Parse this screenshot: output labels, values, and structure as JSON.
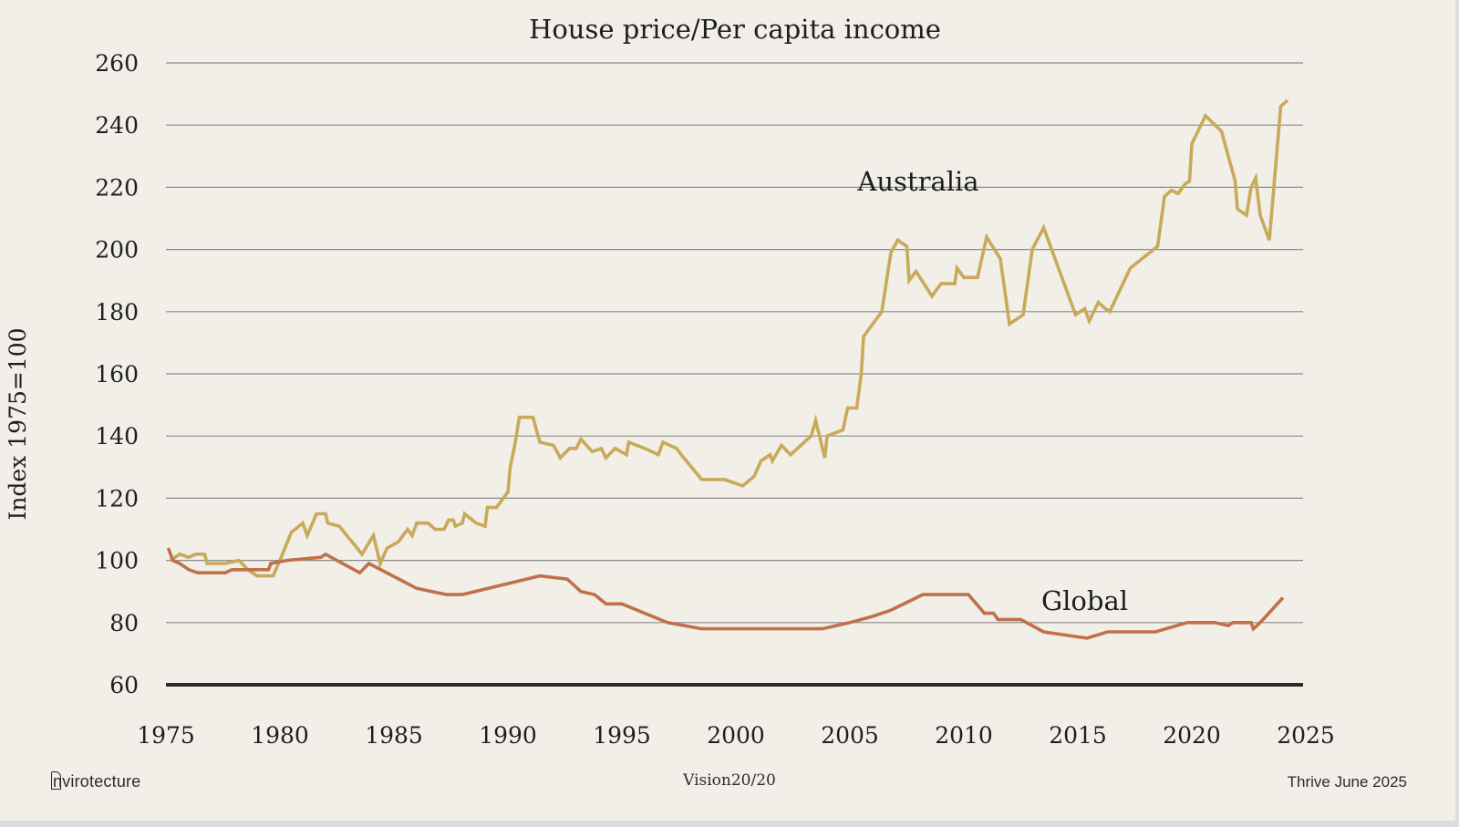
{
  "chart_data": {
    "type": "line",
    "title": "House price/Per capita income",
    "ylabel": "Index 1975=100",
    "xlabel": "",
    "xlim": [
      1975,
      2025
    ],
    "ylim": [
      60,
      260
    ],
    "x_ticks": [
      1975,
      1980,
      1985,
      1990,
      1995,
      2000,
      2005,
      2010,
      2015,
      2020,
      2025
    ],
    "y_ticks": [
      60,
      80,
      100,
      120,
      140,
      160,
      180,
      200,
      220,
      240,
      260
    ],
    "grid": true,
    "colors": {
      "Australia": "#c9a95a",
      "Global": "#c0714a",
      "grid": "#8a8a8a",
      "baseline": "#2b2a24"
    },
    "series": [
      {
        "name": "Australia",
        "label_position": [
          2008,
          219
        ],
        "points": [
          [
            1975.2,
            100
          ],
          [
            1975.6,
            102
          ],
          [
            1976.0,
            101
          ],
          [
            1976.3,
            102
          ],
          [
            1976.7,
            102
          ],
          [
            1976.8,
            99
          ],
          [
            1977.6,
            99
          ],
          [
            1978.2,
            100
          ],
          [
            1978.6,
            97
          ],
          [
            1979.0,
            95
          ],
          [
            1979.7,
            95
          ],
          [
            1980.0,
            100
          ],
          [
            1980.5,
            109
          ],
          [
            1981.0,
            112
          ],
          [
            1981.2,
            108
          ],
          [
            1981.6,
            115
          ],
          [
            1982.0,
            115
          ],
          [
            1982.1,
            112
          ],
          [
            1982.6,
            111
          ],
          [
            1983.6,
            102
          ],
          [
            1984.1,
            108
          ],
          [
            1984.4,
            99
          ],
          [
            1984.7,
            104
          ],
          [
            1985.2,
            106
          ],
          [
            1985.6,
            110
          ],
          [
            1985.8,
            108
          ],
          [
            1986.0,
            112
          ],
          [
            1986.5,
            112
          ],
          [
            1986.8,
            110
          ],
          [
            1987.2,
            110
          ],
          [
            1987.4,
            113
          ],
          [
            1987.6,
            113
          ],
          [
            1987.7,
            111
          ],
          [
            1988.0,
            112
          ],
          [
            1988.1,
            115
          ],
          [
            1988.6,
            112
          ],
          [
            1989.0,
            111
          ],
          [
            1989.1,
            117
          ],
          [
            1989.5,
            117
          ],
          [
            1990.0,
            122
          ],
          [
            1990.1,
            130
          ],
          [
            1990.3,
            137
          ],
          [
            1990.5,
            146
          ],
          [
            1991.1,
            146
          ],
          [
            1991.4,
            138
          ],
          [
            1992.0,
            137
          ],
          [
            1992.3,
            133
          ],
          [
            1992.7,
            136
          ],
          [
            1993.0,
            136
          ],
          [
            1993.2,
            139
          ],
          [
            1993.7,
            135
          ],
          [
            1994.1,
            136
          ],
          [
            1994.3,
            133
          ],
          [
            1994.7,
            136
          ],
          [
            1995.2,
            134
          ],
          [
            1995.3,
            138
          ],
          [
            1996.0,
            136
          ],
          [
            1996.6,
            134
          ],
          [
            1996.8,
            138
          ],
          [
            1997.4,
            136
          ],
          [
            1997.6,
            134
          ],
          [
            1998.5,
            126
          ],
          [
            1999.5,
            126
          ],
          [
            2000.3,
            124
          ],
          [
            2000.8,
            127
          ],
          [
            2001.1,
            132
          ],
          [
            2001.5,
            134
          ],
          [
            2001.6,
            132
          ],
          [
            2002.0,
            137
          ],
          [
            2002.4,
            134
          ],
          [
            2003.0,
            138
          ],
          [
            2003.3,
            140
          ],
          [
            2003.5,
            145
          ],
          [
            2003.9,
            133
          ],
          [
            2004.0,
            140
          ],
          [
            2004.7,
            142
          ],
          [
            2004.9,
            149
          ],
          [
            2005.3,
            149
          ],
          [
            2005.5,
            160
          ],
          [
            2005.6,
            172
          ],
          [
            2006.4,
            180
          ],
          [
            2006.8,
            199
          ],
          [
            2007.1,
            203
          ],
          [
            2007.5,
            201
          ],
          [
            2007.6,
            190
          ],
          [
            2007.9,
            193
          ],
          [
            2008.6,
            185
          ],
          [
            2009.0,
            189
          ],
          [
            2009.6,
            189
          ],
          [
            2009.7,
            194
          ],
          [
            2010.0,
            191
          ],
          [
            2010.6,
            191
          ],
          [
            2011.0,
            204
          ],
          [
            2011.6,
            197
          ],
          [
            2012.0,
            176
          ],
          [
            2012.6,
            179
          ],
          [
            2013.0,
            200
          ],
          [
            2013.5,
            207
          ],
          [
            2014.9,
            179
          ],
          [
            2015.3,
            181
          ],
          [
            2015.5,
            177
          ],
          [
            2015.9,
            183
          ],
          [
            2016.2,
            181
          ],
          [
            2016.4,
            180
          ],
          [
            2017.3,
            194
          ],
          [
            2018.5,
            201
          ],
          [
            2018.8,
            217
          ],
          [
            2019.1,
            219
          ],
          [
            2019.4,
            218
          ],
          [
            2019.7,
            221
          ],
          [
            2019.9,
            222
          ],
          [
            2020.0,
            234
          ],
          [
            2020.6,
            243
          ],
          [
            2021.3,
            238
          ],
          [
            2021.9,
            222
          ],
          [
            2022.0,
            213
          ],
          [
            2022.4,
            211
          ],
          [
            2022.6,
            220
          ],
          [
            2022.8,
            223
          ],
          [
            2023.0,
            211
          ],
          [
            2023.4,
            203
          ],
          [
            2023.9,
            246
          ],
          [
            2024.2,
            248
          ]
        ]
      },
      {
        "name": "Global",
        "label_position": [
          2015.3,
          84
        ],
        "points": [
          [
            1975.1,
            104
          ],
          [
            1975.3,
            100
          ],
          [
            1975.6,
            99
          ],
          [
            1976.0,
            97
          ],
          [
            1976.4,
            96
          ],
          [
            1977.6,
            96
          ],
          [
            1977.9,
            97
          ],
          [
            1979.5,
            97
          ],
          [
            1979.6,
            99
          ],
          [
            1980.3,
            100
          ],
          [
            1981.8,
            101
          ],
          [
            1982.0,
            102
          ],
          [
            1983.5,
            96
          ],
          [
            1983.9,
            99
          ],
          [
            1986.0,
            91
          ],
          [
            1987.3,
            89
          ],
          [
            1988.0,
            89
          ],
          [
            1991.4,
            95
          ],
          [
            1992.6,
            94
          ],
          [
            1993.2,
            90
          ],
          [
            1993.8,
            89
          ],
          [
            1994.3,
            86
          ],
          [
            1995.0,
            86
          ],
          [
            1997.0,
            80
          ],
          [
            1998.5,
            78
          ],
          [
            2002.0,
            78
          ],
          [
            2003.8,
            78
          ],
          [
            2005.0,
            80
          ],
          [
            2006.0,
            82
          ],
          [
            2006.8,
            84
          ],
          [
            2008.2,
            89
          ],
          [
            2010.2,
            89
          ],
          [
            2010.9,
            83
          ],
          [
            2011.3,
            83
          ],
          [
            2011.5,
            81
          ],
          [
            2012.5,
            81
          ],
          [
            2013.5,
            77
          ],
          [
            2015.4,
            75
          ],
          [
            2016.3,
            77
          ],
          [
            2018.4,
            77
          ],
          [
            2019.8,
            80
          ],
          [
            2021.0,
            80
          ],
          [
            2021.6,
            79
          ],
          [
            2021.8,
            80
          ],
          [
            2022.3,
            80
          ],
          [
            2022.6,
            80
          ],
          [
            2022.7,
            78
          ],
          [
            2023.0,
            80
          ],
          [
            2024.0,
            88
          ]
        ]
      }
    ]
  },
  "footer": {
    "logo_text": "nvirotecture",
    "logo_letter": "E",
    "center": "Vision20/20",
    "right": "Thrive June 2025"
  }
}
